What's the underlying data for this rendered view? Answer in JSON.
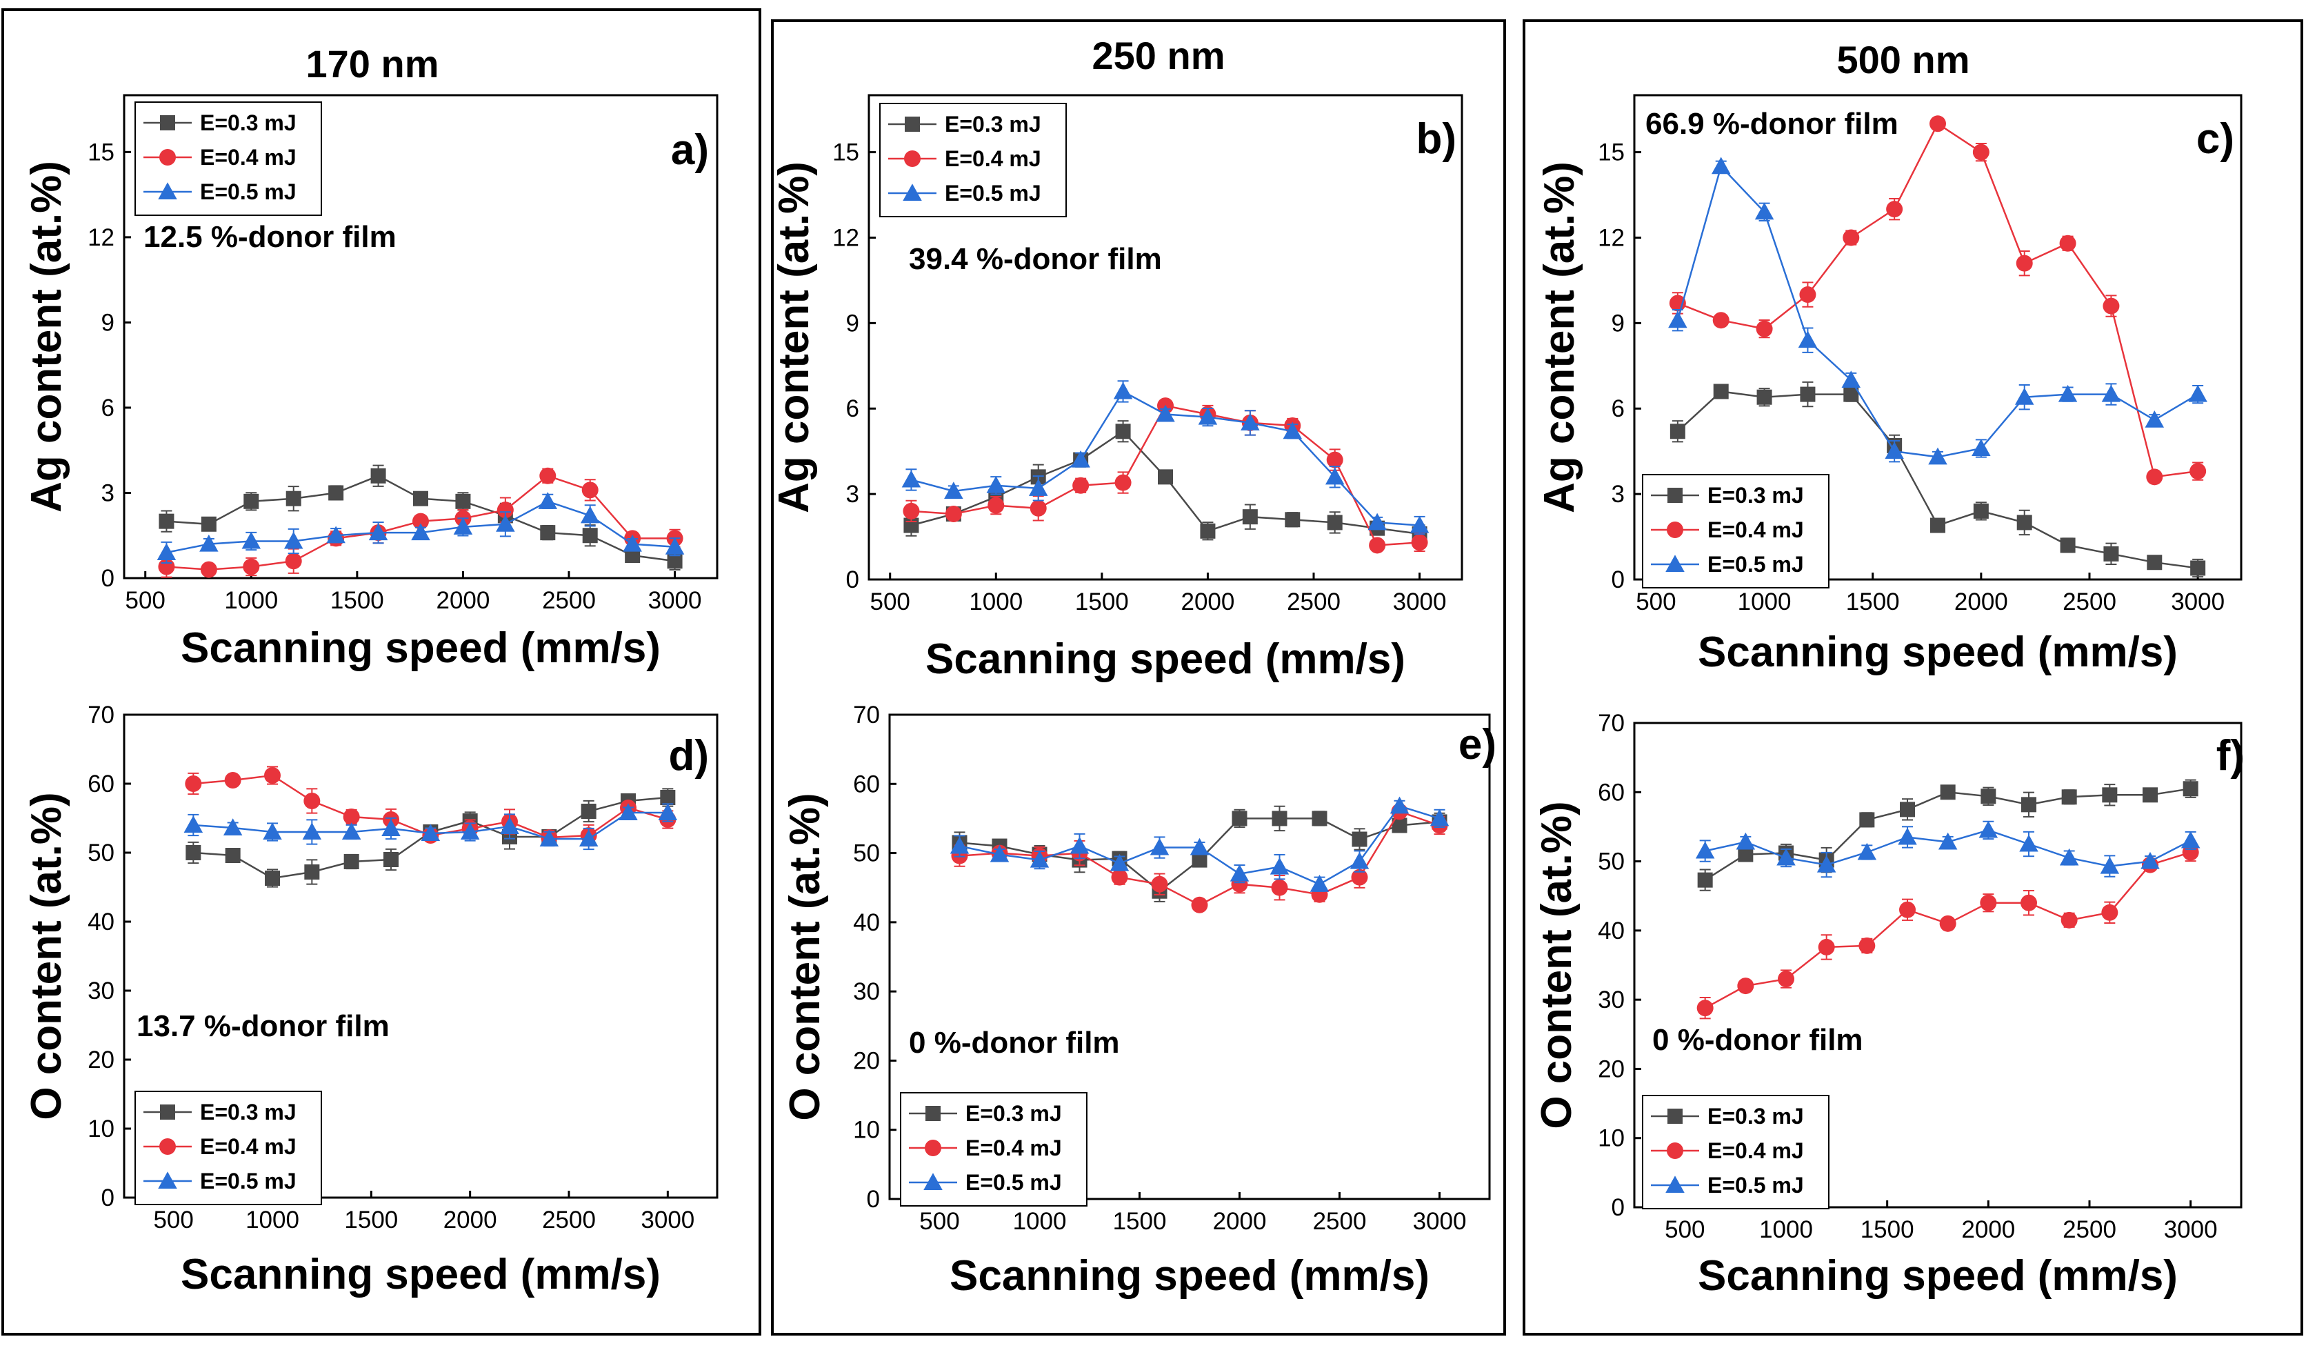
{
  "colors": {
    "E=0.3 mJ": "#4a4a4a",
    "E=0.4 mJ": "#e8343c",
    "E=0.5 mJ": "#2a6fd6"
  },
  "columns": [
    {
      "title": "170 nm"
    },
    {
      "title": "250 nm"
    },
    {
      "title": "500 nm"
    }
  ],
  "chart_data": [
    {
      "type": "line",
      "panel": "a)",
      "column": "170 nm",
      "xlabel": "Scanning speed (mm/s)",
      "ylabel": "Ag content (at.%)",
      "xlim": [
        400,
        3200
      ],
      "ylim": [
        0,
        17
      ],
      "xticks": [
        500,
        1000,
        1500,
        2000,
        2500,
        3000
      ],
      "yticks": [
        0,
        3,
        6,
        9,
        12,
        15
      ],
      "annotation": "12.5 %-donor film",
      "legend": "top-left",
      "x": [
        600,
        800,
        1000,
        1200,
        1400,
        1600,
        1800,
        2000,
        2200,
        2400,
        2600,
        2800,
        3000
      ],
      "series": [
        {
          "name": "E=0.3 mJ",
          "marker": "square",
          "values": [
            2.0,
            1.9,
            2.7,
            2.8,
            3.0,
            3.6,
            2.8,
            2.7,
            2.2,
            1.6,
            1.5,
            0.8,
            0.6
          ]
        },
        {
          "name": "E=0.4 mJ",
          "marker": "circle",
          "values": [
            0.4,
            0.3,
            0.4,
            0.6,
            1.4,
            1.6,
            2.0,
            2.1,
            2.4,
            3.6,
            3.1,
            1.4,
            1.4
          ]
        },
        {
          "name": "E=0.5 mJ",
          "marker": "triangle",
          "values": [
            0.9,
            1.2,
            1.3,
            1.3,
            1.5,
            1.6,
            1.6,
            1.8,
            1.9,
            2.7,
            2.2,
            1.2,
            1.1
          ]
        }
      ]
    },
    {
      "type": "line",
      "panel": "b)",
      "column": "250 nm",
      "xlabel": "Scanning speed (mm/s)",
      "ylabel": "Ag content (at.%)",
      "xlim": [
        400,
        3200
      ],
      "ylim": [
        0,
        17
      ],
      "xticks": [
        500,
        1000,
        1500,
        2000,
        2500,
        3000
      ],
      "yticks": [
        0,
        3,
        6,
        9,
        12,
        15
      ],
      "annotation": "39.4 %-donor film",
      "legend": "top-left",
      "x": [
        600,
        800,
        1000,
        1200,
        1400,
        1600,
        1800,
        2000,
        2200,
        2400,
        2600,
        2800,
        3000
      ],
      "series": [
        {
          "name": "E=0.3 mJ",
          "marker": "square",
          "values": [
            1.9,
            2.3,
            2.9,
            3.6,
            4.2,
            5.2,
            3.6,
            1.7,
            2.2,
            2.1,
            2.0,
            1.8,
            1.6
          ]
        },
        {
          "name": "E=0.4 mJ",
          "marker": "circle",
          "values": [
            2.4,
            2.3,
            2.6,
            2.5,
            3.3,
            3.4,
            6.1,
            5.8,
            5.5,
            5.4,
            4.2,
            1.2,
            1.3
          ]
        },
        {
          "name": "E=0.5 mJ",
          "marker": "triangle",
          "values": [
            3.5,
            3.1,
            3.3,
            3.2,
            4.2,
            6.6,
            5.8,
            5.7,
            5.5,
            5.2,
            3.6,
            2.0,
            1.9
          ]
        }
      ]
    },
    {
      "type": "line",
      "panel": "c)",
      "column": "500 nm",
      "xlabel": "Scanning speed (mm/s)",
      "ylabel": "Ag content (at.%)",
      "xlim": [
        400,
        3200
      ],
      "ylim": [
        0,
        17
      ],
      "xticks": [
        500,
        1000,
        1500,
        2000,
        2500,
        3000
      ],
      "yticks": [
        0,
        3,
        6,
        9,
        12,
        15
      ],
      "annotation": "66.9 %-donor film",
      "legend": "bottom-left",
      "x": [
        600,
        800,
        1000,
        1200,
        1400,
        1600,
        1800,
        2000,
        2200,
        2400,
        2600,
        2800,
        3000
      ],
      "series": [
        {
          "name": "E=0.3 mJ",
          "marker": "square",
          "values": [
            5.2,
            6.6,
            6.4,
            6.5,
            6.5,
            4.7,
            1.9,
            2.4,
            2.0,
            1.2,
            0.9,
            0.6,
            0.4
          ]
        },
        {
          "name": "E=0.4 mJ",
          "marker": "circle",
          "values": [
            9.7,
            9.1,
            8.8,
            10.0,
            12.0,
            13.0,
            16.0,
            15.0,
            11.1,
            11.8,
            9.6,
            3.6,
            3.8
          ]
        },
        {
          "name": "E=0.5 mJ",
          "marker": "triangle",
          "values": [
            9.1,
            14.5,
            12.9,
            8.4,
            7.0,
            4.5,
            4.3,
            4.6,
            6.4,
            6.5,
            6.5,
            5.6,
            6.5
          ]
        }
      ]
    },
    {
      "type": "line",
      "panel": "d)",
      "column": "170 nm",
      "xlabel": "Scanning speed (mm/s)",
      "ylabel": "O content (at.%)",
      "xlim": [
        250,
        3250
      ],
      "ylim": [
        0,
        70
      ],
      "xticks": [
        500,
        1000,
        1500,
        2000,
        2500,
        3000
      ],
      "yticks": [
        0,
        10,
        20,
        30,
        40,
        50,
        60,
        70
      ],
      "annotation": "13.7 %-donor film",
      "legend": "bottom-left",
      "x": [
        600,
        800,
        1000,
        1200,
        1400,
        1600,
        1800,
        2000,
        2200,
        2400,
        2600,
        2800,
        3000
      ],
      "series": [
        {
          "name": "E=0.3 mJ",
          "marker": "square",
          "values": [
            50.0,
            49.6,
            46.3,
            47.2,
            48.7,
            49.0,
            53.0,
            54.6,
            52.3,
            52.3,
            56.0,
            57.5,
            58.0
          ]
        },
        {
          "name": "E=0.4 mJ",
          "marker": "circle",
          "values": [
            60.0,
            60.5,
            61.2,
            57.5,
            55.2,
            54.8,
            52.5,
            53.5,
            54.5,
            52.2,
            52.5,
            56.5,
            54.8
          ]
        },
        {
          "name": "E=0.5 mJ",
          "marker": "triangle",
          "values": [
            54.0,
            53.6,
            53.0,
            53.0,
            53.0,
            53.5,
            52.8,
            53.0,
            53.8,
            52.0,
            52.0,
            55.8,
            55.8
          ]
        }
      ]
    },
    {
      "type": "line",
      "panel": "e)",
      "column": "250 nm",
      "xlabel": "Scanning speed (mm/s)",
      "ylabel": "O content (at.%)",
      "xlim": [
        250,
        3250
      ],
      "ylim": [
        0,
        70
      ],
      "xticks": [
        500,
        1000,
        1500,
        2000,
        2500,
        3000
      ],
      "yticks": [
        0,
        10,
        20,
        30,
        40,
        50,
        60,
        70
      ],
      "annotation": "0 %-donor film",
      "legend": "bottom-left",
      "x": [
        600,
        800,
        1000,
        1200,
        1400,
        1600,
        1800,
        2000,
        2200,
        2400,
        2600,
        2800,
        3000
      ],
      "series": [
        {
          "name": "E=0.3 mJ",
          "marker": "square",
          "values": [
            51.5,
            51.0,
            49.8,
            49.0,
            49.2,
            44.5,
            49.0,
            55.0,
            55.0,
            55.0,
            52.0,
            54.0,
            54.5
          ]
        },
        {
          "name": "E=0.4 mJ",
          "marker": "circle",
          "values": [
            49.6,
            50.0,
            49.6,
            50.0,
            46.5,
            45.5,
            42.5,
            45.5,
            45.0,
            44.0,
            46.5,
            56.0,
            54.0
          ]
        },
        {
          "name": "E=0.5 mJ",
          "marker": "triangle",
          "values": [
            51.0,
            49.8,
            49.0,
            51.0,
            48.5,
            50.8,
            50.8,
            47.0,
            48.0,
            45.5,
            48.8,
            56.8,
            55.0
          ]
        }
      ]
    },
    {
      "type": "line",
      "panel": "f)",
      "column": "500 nm",
      "xlabel": "Scanning speed (mm/s)",
      "ylabel": "O content (at.%)",
      "xlim": [
        250,
        3250
      ],
      "ylim": [
        0,
        70
      ],
      "xticks": [
        500,
        1000,
        1500,
        2000,
        2500,
        3000
      ],
      "yticks": [
        0,
        10,
        20,
        30,
        40,
        50,
        60,
        70
      ],
      "annotation": "0 %-donor film",
      "legend": "bottom-left",
      "x": [
        600,
        800,
        1000,
        1200,
        1400,
        1600,
        1800,
        2000,
        2200,
        2400,
        2600,
        2800,
        3000
      ],
      "series": [
        {
          "name": "E=0.3 mJ",
          "marker": "square",
          "values": [
            47.3,
            51.0,
            51.2,
            50.2,
            56.0,
            57.5,
            60.0,
            59.4,
            58.2,
            59.3,
            59.6,
            59.6,
            60.5
          ]
        },
        {
          "name": "E=0.4 mJ",
          "marker": "circle",
          "values": [
            28.8,
            32.0,
            33.0,
            37.6,
            37.8,
            43.0,
            41.0,
            44.0,
            44.0,
            41.5,
            42.6,
            49.5,
            51.3
          ]
        },
        {
          "name": "E=0.5 mJ",
          "marker": "triangle",
          "values": [
            51.5,
            52.8,
            50.5,
            49.5,
            51.3,
            53.5,
            52.8,
            54.5,
            52.5,
            50.5,
            49.3,
            50.0,
            53.0
          ]
        }
      ]
    }
  ]
}
